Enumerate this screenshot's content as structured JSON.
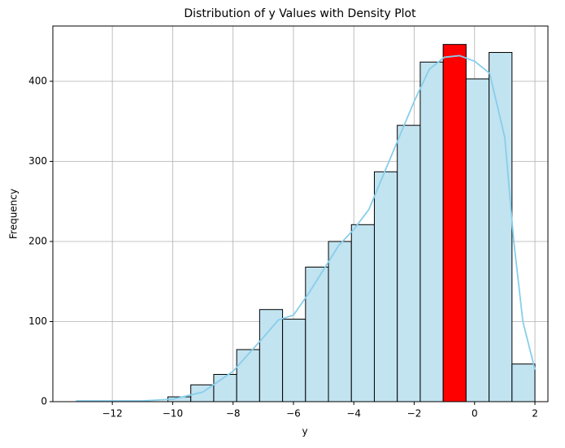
{
  "chart_data": {
    "type": "histogram",
    "title": "Distribution of y Values with Density Plot",
    "x_label": "y",
    "y_label": "Frequency",
    "bins": [
      -13.2,
      -12.44,
      -11.68,
      -10.92,
      -10.16,
      -9.4,
      -8.64,
      -7.88,
      -7.12,
      -6.36,
      -5.6,
      -4.84,
      -4.08,
      -3.32,
      -2.56,
      -1.8,
      -1.04,
      -0.28,
      0.48,
      1.24,
      2.0
    ],
    "counts": [
      0,
      0,
      0,
      0,
      6,
      21,
      34,
      65,
      115,
      103,
      168,
      200,
      221,
      287,
      345,
      424,
      446,
      403,
      436,
      47
    ],
    "color": "#c2e3f0",
    "edge_color": "#000000",
    "highlight": {
      "bin": 16,
      "color": "#ff0000"
    },
    "density": {
      "color": "#87ceeb",
      "x": [
        -13.2,
        -11,
        -10,
        -9,
        -8,
        -7,
        -6.5,
        -6,
        -5.5,
        -5,
        -4.5,
        -4,
        -3.5,
        -3,
        -2.5,
        -2,
        -1.5,
        -1,
        -0.5,
        0,
        0.5,
        1,
        1.3,
        1.6,
        2
      ],
      "y": [
        1,
        1,
        3,
        12,
        38,
        80,
        102,
        108,
        135,
        165,
        195,
        215,
        240,
        285,
        330,
        375,
        415,
        430,
        432,
        425,
        410,
        330,
        200,
        100,
        40
      ]
    },
    "xlim": [
      -13.97,
      2.43
    ],
    "ylim": [
      0,
      469
    ],
    "xticks": [
      {
        "value": -12,
        "label": "−12"
      },
      {
        "value": -10,
        "label": "−10"
      },
      {
        "value": -8,
        "label": "−8"
      },
      {
        "value": -6,
        "label": "−6"
      },
      {
        "value": -4,
        "label": "−4"
      },
      {
        "value": -2,
        "label": "−2"
      },
      0,
      2
    ],
    "yticks": [
      0,
      100,
      200,
      300,
      400
    ],
    "grid": true
  }
}
